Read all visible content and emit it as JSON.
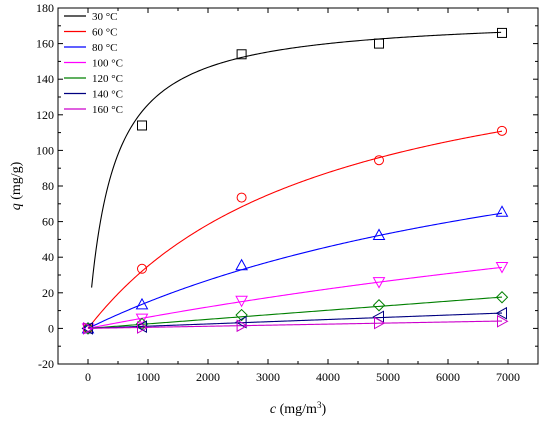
{
  "chart_data": {
    "type": "scatter",
    "title": "",
    "xlabel": {
      "var": "c",
      "unit_prefix": " (mg/m",
      "unit_sup": "3",
      "unit_suffix": ")"
    },
    "ylabel": {
      "var": "q",
      "unit": " (mg/g)"
    },
    "xlim": [
      -500,
      7500
    ],
    "ylim": [
      -20,
      180
    ],
    "xticks": [
      0,
      1000,
      2000,
      3000,
      4000,
      5000,
      6000,
      7000
    ],
    "xtick_labels": [
      "0",
      "1000",
      "2000",
      "3000",
      "4000",
      "5000",
      "6000",
      "7000"
    ],
    "yticks": [
      -20,
      0,
      20,
      40,
      60,
      80,
      100,
      120,
      140,
      160,
      180
    ],
    "ytick_labels": [
      "-20",
      "0",
      "20",
      "40",
      "60",
      "80",
      "100",
      "120",
      "140",
      "160",
      "180"
    ],
    "grid": false,
    "legend_position": "top-left",
    "series": [
      {
        "name": "30 °C",
        "color": "#000000",
        "marker": "square",
        "x": [
          0,
          900,
          2560,
          4850,
          6900
        ],
        "y": [
          0,
          114,
          154,
          160,
          166
        ],
        "fit": {
          "model": "langmuir",
          "qm": 176,
          "b": 0.0025
        }
      },
      {
        "name": "60 °C",
        "color": "#ff0000",
        "marker": "circle",
        "x": [
          0,
          900,
          2560,
          4850,
          6900
        ],
        "y": [
          0,
          33.5,
          73.5,
          94.5,
          111
        ],
        "fit": {
          "model": "langmuir",
          "qm": 175,
          "b": 0.00025
        }
      },
      {
        "name": "80 °C",
        "color": "#0000ff",
        "marker": "triangle-up",
        "x": [
          0,
          900,
          2560,
          4850,
          6900
        ],
        "y": [
          0,
          13.5,
          35.5,
          52.5,
          65.5
        ],
        "fit": {
          "model": "langmuir",
          "qm": 150,
          "b": 0.00011
        }
      },
      {
        "name": "100 °C",
        "color": "#ff00ff",
        "marker": "triangle-down",
        "x": [
          0,
          900,
          2560,
          4850,
          6900
        ],
        "y": [
          0,
          5.5,
          15.5,
          26,
          34.5
        ],
        "fit": {
          "model": "langmuir",
          "qm": 140,
          "b": 4.7e-05
        }
      },
      {
        "name": "120 °C",
        "color": "#008000",
        "marker": "diamond",
        "x": [
          0,
          900,
          2560,
          4850,
          6900
        ],
        "y": [
          0,
          2.5,
          7.5,
          13,
          17.5
        ],
        "fit": {
          "model": "linear",
          "k": 0.00255
        }
      },
      {
        "name": "140 °C",
        "color": "#000080",
        "marker": "triangle-left",
        "x": [
          0,
          900,
          2560,
          4850,
          6900
        ],
        "y": [
          0,
          1,
          3.5,
          6.5,
          8.5
        ],
        "fit": {
          "model": "linear",
          "k": 0.00125
        }
      },
      {
        "name": "160 °C",
        "color": "#cc00cc",
        "marker": "triangle-right",
        "x": [
          0,
          900,
          2560,
          4850,
          6900
        ],
        "y": [
          0,
          0.5,
          1.5,
          3,
          4
        ],
        "fit": {
          "model": "linear",
          "k": 0.0006
        }
      }
    ]
  }
}
